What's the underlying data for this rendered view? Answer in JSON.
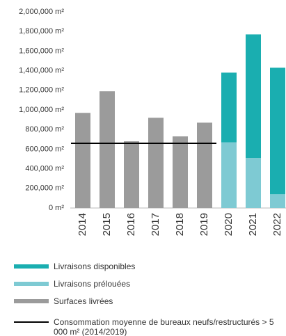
{
  "chart_data": {
    "type": "bar",
    "stacked": true,
    "categories": [
      "2014",
      "2015",
      "2016",
      "2017",
      "2018",
      "2019",
      "2020",
      "2021",
      "2022"
    ],
    "series": [
      {
        "name": "Livraisons disponibles",
        "color": "#1aaeb0",
        "values": [
          null,
          null,
          null,
          null,
          null,
          null,
          710000,
          1260000,
          1290000
        ]
      },
      {
        "name": "Livraisons prélouées",
        "color": "#7ecad3",
        "values": [
          null,
          null,
          null,
          null,
          null,
          null,
          670000,
          510000,
          140000
        ]
      },
      {
        "name": "Surfaces livrées",
        "color": "#9b9b9b",
        "values": [
          970000,
          1190000,
          680000,
          920000,
          730000,
          870000,
          null,
          null,
          null
        ]
      },
      {
        "name": "Consommation moyenne de bureaux neufs/restructurés > 5 000 m² (2014/2019)",
        "color": "#000000",
        "type": "line",
        "values": [
          660000,
          660000,
          660000,
          660000,
          660000,
          660000,
          null,
          null,
          null
        ]
      }
    ],
    "ylim": [
      0,
      2000000
    ],
    "yticks": [
      {
        "value": 0,
        "label": "0 m²"
      },
      {
        "value": 200000,
        "label": "200,000 m²"
      },
      {
        "value": 400000,
        "label": "400,000 m²"
      },
      {
        "value": 600000,
        "label": "600,000 m²"
      },
      {
        "value": 800000,
        "label": "800,000 m²"
      },
      {
        "value": 1000000,
        "label": "1,000,000 m²"
      },
      {
        "value": 1200000,
        "label": "1,200,000 m²"
      },
      {
        "value": 1400000,
        "label": "1,400,000 m²"
      },
      {
        "value": 1600000,
        "label": "1,600,000 m²"
      },
      {
        "value": 1800000,
        "label": "1,800,000 m²"
      },
      {
        "value": 2000000,
        "label": "2,000,000 m²"
      }
    ],
    "grid": false,
    "legend": "bottom"
  }
}
